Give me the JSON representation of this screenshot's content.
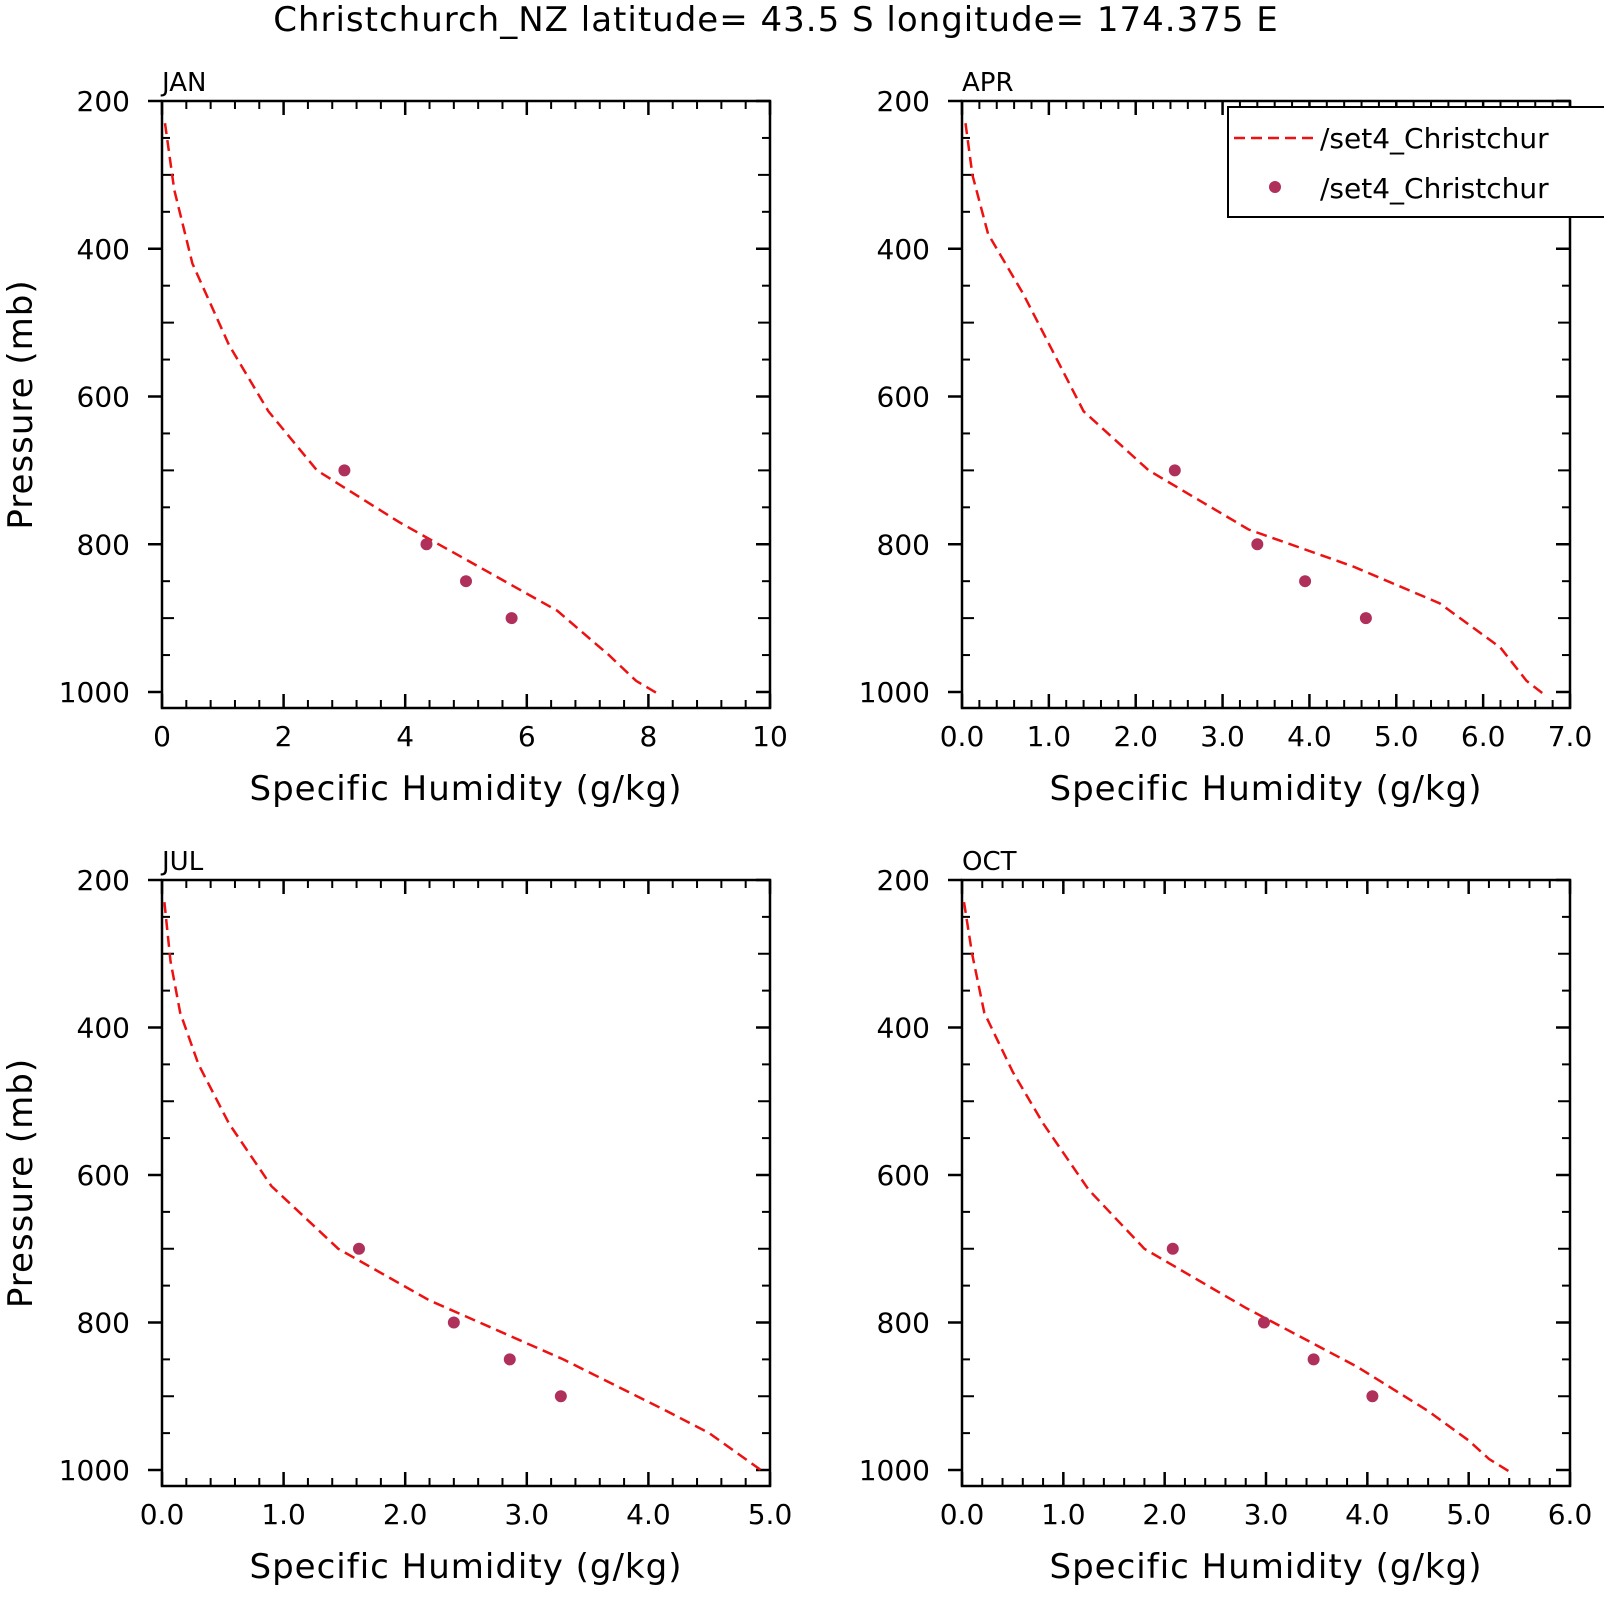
{
  "title": "Christchurch_NZ  latitude= 43.5 S longitude= 174.375 E",
  "colors": {
    "model_line": "#ee1111",
    "obs_marker": "#b0305c",
    "axes": "#000000"
  },
  "legend": {
    "placement": "top-right",
    "entries": [
      {
        "label": "/set4_Christchur",
        "style": "dashed-line"
      },
      {
        "label": "/set4_Christchur",
        "style": "circle-marker"
      }
    ]
  },
  "chart_data": [
    {
      "type": "line",
      "panel": "JAN",
      "xlabel": "Specific Humidity (g/kg)",
      "ylabel": "Pressure (mb)",
      "xlim": [
        0,
        10
      ],
      "ylim": [
        1000,
        200
      ],
      "xticks": [
        "0",
        "2",
        "4",
        "6",
        "8",
        "10"
      ],
      "yticks": [
        "200",
        "400",
        "600",
        "800",
        "1000"
      ],
      "series": [
        {
          "style": "dashed",
          "x": [
            0.05,
            0.2,
            0.5,
            1.1,
            1.75,
            2.55,
            3.9,
            5.2,
            6.5,
            7.35,
            7.8,
            8.15
          ],
          "y": [
            230,
            320,
            420,
            530,
            620,
            700,
            770,
            830,
            890,
            950,
            985,
            1002
          ]
        },
        {
          "style": "markers",
          "x": [
            3.0,
            4.35,
            5.0,
            5.75
          ],
          "y": [
            700,
            800,
            850,
            900
          ]
        }
      ]
    },
    {
      "type": "line",
      "panel": "APR",
      "xlabel": "Specific Humidity (g/kg)",
      "ylabel": "",
      "xlim": [
        0,
        7
      ],
      "ylim": [
        1000,
        200
      ],
      "xticks": [
        "0.0",
        "1.0",
        "2.0",
        "3.0",
        "4.0",
        "5.0",
        "6.0",
        "7.0"
      ],
      "yticks": [
        "200",
        "400",
        "600",
        "800",
        "1000"
      ],
      "series": [
        {
          "style": "dashed",
          "x": [
            0.04,
            0.12,
            0.3,
            0.7,
            1.4,
            2.15,
            3.3,
            4.5,
            5.5,
            6.2,
            6.5,
            6.72
          ],
          "y": [
            230,
            300,
            380,
            460,
            620,
            700,
            780,
            830,
            880,
            940,
            985,
            1005
          ]
        },
        {
          "style": "markers",
          "x": [
            2.45,
            3.4,
            3.95,
            4.65
          ],
          "y": [
            700,
            800,
            850,
            900
          ]
        }
      ]
    },
    {
      "type": "line",
      "panel": "JUL",
      "xlabel": "Specific Humidity (g/kg)",
      "ylabel": "Pressure (mb)",
      "xlim": [
        0,
        5
      ],
      "ylim": [
        1000,
        200
      ],
      "xticks": [
        "0.0",
        "1.0",
        "2.0",
        "3.0",
        "4.0",
        "5.0"
      ],
      "yticks": [
        "200",
        "400",
        "600",
        "800",
        "1000"
      ],
      "series": [
        {
          "style": "dashed",
          "x": [
            0.02,
            0.07,
            0.15,
            0.3,
            0.55,
            0.9,
            1.45,
            2.2,
            3.3,
            4.15,
            4.5,
            4.95
          ],
          "y": [
            230,
            310,
            380,
            450,
            530,
            615,
            700,
            770,
            850,
            920,
            950,
            1003
          ]
        },
        {
          "style": "markers",
          "x": [
            1.62,
            2.4,
            2.86,
            3.28
          ],
          "y": [
            700,
            800,
            850,
            900
          ]
        }
      ]
    },
    {
      "type": "line",
      "panel": "OCT",
      "xlabel": "Specific Humidity (g/kg)",
      "ylabel": "",
      "xlim": [
        0,
        6
      ],
      "ylim": [
        1000,
        200
      ],
      "xticks": [
        "0.0",
        "1.0",
        "2.0",
        "3.0",
        "4.0",
        "5.0",
        "6.0"
      ],
      "yticks": [
        "200",
        "400",
        "600",
        "800",
        "1000"
      ],
      "series": [
        {
          "style": "dashed",
          "x": [
            0.02,
            0.1,
            0.22,
            0.5,
            0.8,
            1.25,
            1.8,
            2.8,
            3.9,
            4.6,
            5.0,
            5.2,
            5.4
          ],
          "y": [
            230,
            300,
            380,
            460,
            530,
            620,
            700,
            780,
            860,
            920,
            960,
            985,
            1002
          ]
        },
        {
          "style": "markers",
          "x": [
            2.08,
            2.98,
            3.47,
            4.05
          ],
          "y": [
            700,
            800,
            850,
            900
          ]
        }
      ]
    }
  ]
}
